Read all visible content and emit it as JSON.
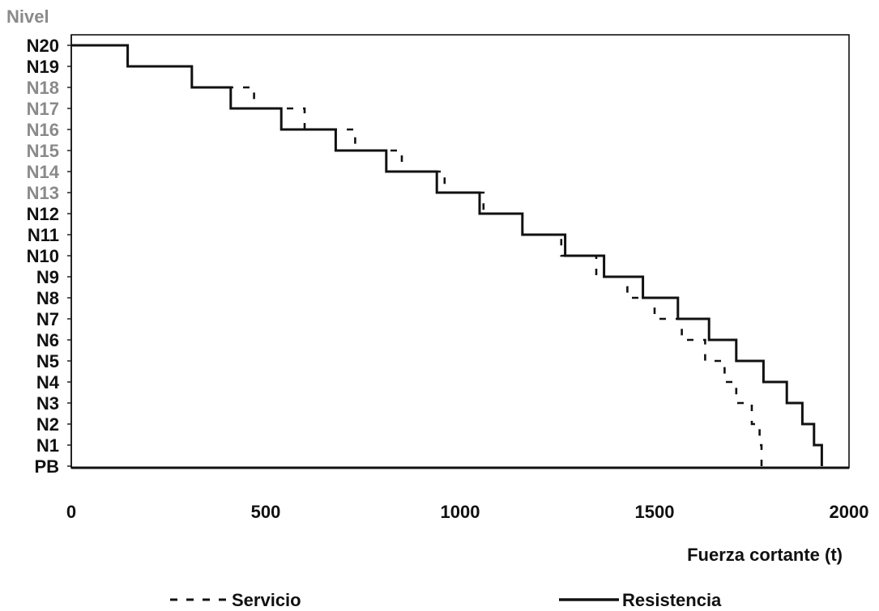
{
  "chart_data": {
    "type": "line",
    "title": "",
    "xlabel": "Fuerza cortante (t)",
    "ylabel": "Nivel",
    "xlim": [
      0,
      2000
    ],
    "xticks": [
      "0",
      "500",
      "1000",
      "1500",
      "2000"
    ],
    "xtick_values": [
      0,
      500,
      1000,
      1500,
      2000
    ],
    "levels": [
      "PB",
      "N1",
      "N2",
      "N3",
      "N4",
      "N5",
      "N6",
      "N7",
      "N8",
      "N9",
      "N10",
      "N11",
      "N12",
      "N13",
      "N14",
      "N15",
      "N16",
      "N17",
      "N18",
      "N19",
      "N20"
    ],
    "grid": false,
    "legend_position": "bottom",
    "series": [
      {
        "name": "Servicio",
        "style": "dashed",
        "color": "#111111",
        "stories": [
          "N1",
          "N2",
          "N3",
          "N4",
          "N5",
          "N6",
          "N7",
          "N8",
          "N9",
          "N10",
          "N11",
          "N12",
          "N13",
          "N14",
          "N15",
          "N16",
          "N17",
          "N18",
          "N19",
          "N20"
        ],
        "values": [
          1775,
          1770,
          1750,
          1710,
          1680,
          1630,
          1570,
          1500,
          1430,
          1350,
          1260,
          1160,
          1060,
          960,
          850,
          730,
          600,
          470,
          310,
          145
        ]
      },
      {
        "name": "Resistencia",
        "style": "solid",
        "color": "#111111",
        "stories": [
          "N1",
          "N2",
          "N3",
          "N4",
          "N5",
          "N6",
          "N7",
          "N8",
          "N9",
          "N10",
          "N11",
          "N12",
          "N13",
          "N14",
          "N15",
          "N16",
          "N17",
          "N18",
          "N19",
          "N20"
        ],
        "values": [
          1930,
          1910,
          1880,
          1840,
          1780,
          1710,
          1640,
          1560,
          1470,
          1370,
          1270,
          1160,
          1050,
          940,
          810,
          680,
          540,
          410,
          310,
          145
        ]
      }
    ]
  }
}
